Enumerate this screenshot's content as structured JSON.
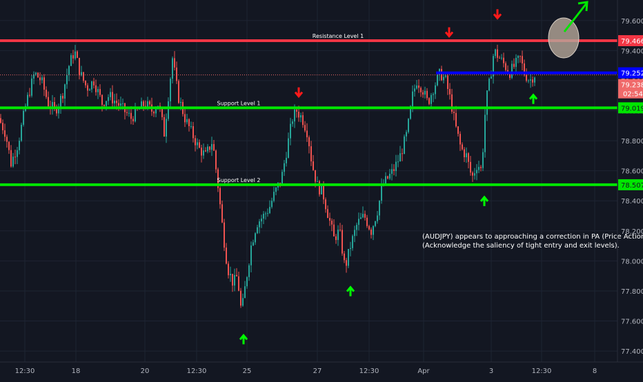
{
  "chart_data": {
    "type": "candlestick",
    "title": "",
    "symbol": "AUDJPY",
    "ylim": [
      77.35,
      79.7
    ],
    "y_ticks": [
      "79.600",
      "79.400",
      "79.200",
      "79.000",
      "78.800",
      "78.600",
      "78.400",
      "78.200",
      "78.000",
      "77.800",
      "77.600",
      "77.400"
    ],
    "x_ticks": [
      "12:30",
      "18",
      "20",
      "12:30",
      "25",
      "27",
      "12:30",
      "Apr",
      "3",
      "12:30",
      "8"
    ],
    "price_series": [
      [
        0,
        78.95
      ],
      [
        10,
        78.85
      ],
      [
        18,
        78.65
      ],
      [
        28,
        78.78
      ],
      [
        40,
        79.05
      ],
      [
        52,
        79.25
      ],
      [
        62,
        79.2
      ],
      [
        72,
        79.05
      ],
      [
        82,
        79.0
      ],
      [
        92,
        79.1
      ],
      [
        102,
        79.3
      ],
      [
        110,
        79.4
      ],
      [
        118,
        79.25
      ],
      [
        128,
        79.15
      ],
      [
        138,
        79.2
      ],
      [
        150,
        79.05
      ],
      [
        160,
        79.1
      ],
      [
        172,
        79.05
      ],
      [
        182,
        79.0
      ],
      [
        192,
        78.95
      ],
      [
        202,
        79.0
      ],
      [
        212,
        79.05
      ],
      [
        222,
        79.0
      ],
      [
        232,
        79.05
      ],
      [
        240,
        78.85
      ],
      [
        246,
        79.1
      ],
      [
        252,
        79.35
      ],
      [
        260,
        79.1
      ],
      [
        270,
        78.95
      ],
      [
        280,
        78.85
      ],
      [
        290,
        78.75
      ],
      [
        300,
        78.7
      ],
      [
        310,
        78.8
      ],
      [
        318,
        78.5
      ],
      [
        325,
        78.2
      ],
      [
        332,
        77.95
      ],
      [
        340,
        77.85
      ],
      [
        346,
        77.9
      ],
      [
        352,
        77.65
      ],
      [
        358,
        77.85
      ],
      [
        366,
        78.1
      ],
      [
        374,
        78.25
      ],
      [
        384,
        78.3
      ],
      [
        392,
        78.35
      ],
      [
        400,
        78.45
      ],
      [
        410,
        78.55
      ],
      [
        418,
        78.75
      ],
      [
        426,
        78.95
      ],
      [
        432,
        79.0
      ],
      [
        440,
        78.95
      ],
      [
        448,
        78.85
      ],
      [
        454,
        78.65
      ],
      [
        462,
        78.5
      ],
      [
        470,
        78.45
      ],
      [
        478,
        78.3
      ],
      [
        486,
        78.15
      ],
      [
        494,
        78.2
      ],
      [
        502,
        77.95
      ],
      [
        510,
        78.1
      ],
      [
        520,
        78.25
      ],
      [
        530,
        78.3
      ],
      [
        540,
        78.2
      ],
      [
        550,
        78.35
      ],
      [
        556,
        78.5
      ],
      [
        564,
        78.55
      ],
      [
        572,
        78.6
      ],
      [
        582,
        78.7
      ],
      [
        592,
        78.85
      ],
      [
        600,
        79.1
      ],
      [
        606,
        79.2
      ],
      [
        614,
        79.15
      ],
      [
        622,
        79.05
      ],
      [
        630,
        79.15
      ],
      [
        640,
        79.25
      ],
      [
        648,
        79.2
      ],
      [
        656,
        79.05
      ],
      [
        662,
        78.9
      ],
      [
        670,
        78.75
      ],
      [
        678,
        78.7
      ],
      [
        686,
        78.55
      ],
      [
        694,
        78.65
      ],
      [
        700,
        78.6
      ],
      [
        706,
        79.05
      ],
      [
        712,
        79.2
      ],
      [
        718,
        79.4
      ],
      [
        726,
        79.35
      ],
      [
        734,
        79.3
      ],
      [
        740,
        79.25
      ],
      [
        748,
        79.3
      ],
      [
        756,
        79.35
      ],
      [
        762,
        79.25
      ],
      [
        770,
        79.2
      ],
      [
        776,
        79.24
      ]
    ],
    "levels": [
      {
        "name": "Resistance Level 1",
        "value": 79.466,
        "label": "79.466",
        "color": "#f23645"
      },
      {
        "name": "Support Level 1",
        "value": 79.019,
        "label": "79.019",
        "color": "#00e600"
      },
      {
        "name": "Support Level 2",
        "value": 78.507,
        "label": "78.507",
        "color": "#00e600"
      }
    ],
    "blue_level": {
      "value": 79.252,
      "label": "79.252",
      "color": "#0000ff"
    },
    "last_price": {
      "value": 79.238,
      "label": "79.238",
      "countdown": "02:54",
      "color": "#f06a6a"
    },
    "arrows": [
      {
        "dir": "down",
        "x": 433,
        "price": 79.1,
        "color": "#ff1a1a"
      },
      {
        "dir": "down",
        "x": 651,
        "price": 79.5,
        "color": "#ff1a1a"
      },
      {
        "dir": "down",
        "x": 721,
        "price": 79.62,
        "color": "#ff1a1a"
      },
      {
        "dir": "up",
        "x": 353,
        "price": 77.5,
        "color": "#00ff00"
      },
      {
        "dir": "up",
        "x": 508,
        "price": 77.82,
        "color": "#00ff00"
      },
      {
        "dir": "up",
        "x": 702,
        "price": 78.42,
        "color": "#00ff00"
      },
      {
        "dir": "up",
        "x": 773,
        "price": 79.1,
        "color": "#00ff00"
      }
    ],
    "annotation": "(AUDJPY) appears to approaching a correction in PA (Price Action).\n(Acknowledge the saliency of tight entry and exit levels).",
    "colors": {
      "background": "#131722",
      "up": "#26a69a",
      "down": "#ef5350",
      "grid": "#1e2433",
      "axis_text": "#b2b5be"
    }
  }
}
